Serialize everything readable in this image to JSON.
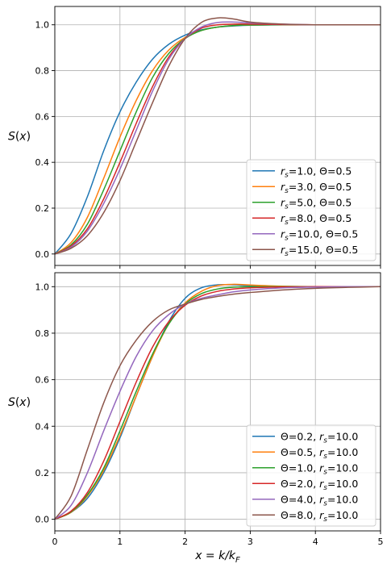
{
  "chart_data": [
    {
      "type": "line",
      "ylabel": "S(x)",
      "xlabel": "",
      "xlim": [
        0,
        5
      ],
      "ylim": [
        -0.05,
        1.08
      ],
      "xticks": [
        0,
        1,
        2,
        3,
        4,
        5
      ],
      "yticks": [
        0.0,
        0.2,
        0.4,
        0.6,
        0.8,
        1.0
      ],
      "ytick_labels": [
        "0.0",
        "0.2",
        "0.4",
        "0.6",
        "0.8",
        "1.0"
      ],
      "show_xtick_labels": false,
      "grid": true,
      "legend_position": "lower-right",
      "x": [
        0,
        0.25,
        0.5,
        0.75,
        1.0,
        1.25,
        1.5,
        1.75,
        2.0,
        2.25,
        2.5,
        2.75,
        3.0,
        3.5,
        4.0,
        4.5,
        5.0
      ],
      "series": [
        {
          "name": "rs=1.0, Θ=0.5",
          "color": "#1f77b4",
          "values": [
            0.0,
            0.09,
            0.25,
            0.45,
            0.62,
            0.75,
            0.85,
            0.915,
            0.955,
            0.978,
            0.99,
            0.995,
            0.998,
            1.0,
            1.0,
            1.0,
            1.0
          ]
        },
        {
          "name": "rs=3.0, Θ=0.5",
          "color": "#ff7f0e",
          "values": [
            0.0,
            0.05,
            0.16,
            0.33,
            0.51,
            0.67,
            0.8,
            0.89,
            0.945,
            0.975,
            0.99,
            0.997,
            0.999,
            1.0,
            1.0,
            1.0,
            1.0
          ]
        },
        {
          "name": "rs=5.0, Θ=0.5",
          "color": "#2ca02c",
          "values": [
            0.0,
            0.04,
            0.13,
            0.28,
            0.45,
            0.62,
            0.77,
            0.875,
            0.94,
            0.975,
            0.99,
            0.997,
            0.999,
            1.0,
            1.0,
            1.0,
            1.0
          ]
        },
        {
          "name": "rs=8.0, Θ=0.5",
          "color": "#d62728",
          "values": [
            0.0,
            0.035,
            0.11,
            0.24,
            0.4,
            0.57,
            0.73,
            0.86,
            0.94,
            0.985,
            1.0,
            1.003,
            1.003,
            1.001,
            1.0,
            1.0,
            1.0
          ]
        },
        {
          "name": "rs=10.0, Θ=0.5",
          "color": "#9467bd",
          "values": [
            0.0,
            0.03,
            0.1,
            0.22,
            0.37,
            0.54,
            0.71,
            0.85,
            0.94,
            0.99,
            1.01,
            1.012,
            1.008,
            1.003,
            1.0,
            1.0,
            1.0
          ]
        },
        {
          "name": "rs=15.0, Θ=0.5",
          "color": "#8c564b",
          "values": [
            0.0,
            0.025,
            0.08,
            0.18,
            0.32,
            0.49,
            0.66,
            0.82,
            0.94,
            1.01,
            1.03,
            1.025,
            1.012,
            1.003,
            1.0,
            1.0,
            1.0
          ]
        }
      ]
    },
    {
      "type": "line",
      "ylabel": "S(x)",
      "xlabel": "x = k/kF",
      "xlim": [
        0,
        5
      ],
      "ylim": [
        -0.05,
        1.06
      ],
      "xticks": [
        0,
        1,
        2,
        3,
        4,
        5
      ],
      "xtick_labels": [
        "0",
        "1",
        "2",
        "3",
        "4",
        "5"
      ],
      "yticks": [
        0.0,
        0.2,
        0.4,
        0.6,
        0.8,
        1.0
      ],
      "ytick_labels": [
        "0.0",
        "0.2",
        "0.4",
        "0.6",
        "0.8",
        "1.0"
      ],
      "show_xtick_labels": true,
      "grid": true,
      "legend_position": "lower-right",
      "x": [
        0,
        0.25,
        0.5,
        0.75,
        1.0,
        1.25,
        1.5,
        1.75,
        2.0,
        2.25,
        2.5,
        2.75,
        3.0,
        3.5,
        4.0,
        4.5,
        5.0
      ],
      "series": [
        {
          "name": "Θ=0.2, rs=10.0",
          "color": "#1f77b4",
          "values": [
            0.0,
            0.03,
            0.09,
            0.2,
            0.35,
            0.53,
            0.7,
            0.85,
            0.95,
            0.995,
            1.008,
            1.008,
            1.004,
            1.001,
            1.0,
            1.0,
            1.0
          ]
        },
        {
          "name": "Θ=0.5, rs=10.0",
          "color": "#ff7f0e",
          "values": [
            0.0,
            0.03,
            0.1,
            0.21,
            0.36,
            0.53,
            0.7,
            0.84,
            0.93,
            0.98,
            1.005,
            1.01,
            1.007,
            1.002,
            1.0,
            1.0,
            1.0
          ]
        },
        {
          "name": "Θ=1.0, rs=10.0",
          "color": "#2ca02c",
          "values": [
            0.0,
            0.032,
            0.105,
            0.22,
            0.38,
            0.55,
            0.71,
            0.84,
            0.925,
            0.97,
            0.99,
            0.998,
            1.0,
            1.0,
            1.0,
            1.0,
            1.0
          ]
        },
        {
          "name": "Θ=2.0, rs=10.0",
          "color": "#d62728",
          "values": [
            0.0,
            0.035,
            0.115,
            0.25,
            0.42,
            0.59,
            0.74,
            0.85,
            0.92,
            0.96,
            0.98,
            0.99,
            0.995,
            0.999,
            1.0,
            1.0,
            1.0
          ]
        },
        {
          "name": "Θ=4.0, rs=10.0",
          "color": "#9467bd",
          "values": [
            0.0,
            0.06,
            0.2,
            0.38,
            0.55,
            0.7,
            0.81,
            0.88,
            0.925,
            0.95,
            0.965,
            0.978,
            0.986,
            0.995,
            0.998,
            1.0,
            1.0
          ]
        },
        {
          "name": "Θ=8.0, rs=10.0",
          "color": "#8c564b",
          "values": [
            0.0,
            0.1,
            0.3,
            0.5,
            0.66,
            0.77,
            0.85,
            0.9,
            0.925,
            0.945,
            0.958,
            0.968,
            0.975,
            0.986,
            0.993,
            0.997,
            1.0
          ]
        }
      ]
    }
  ]
}
